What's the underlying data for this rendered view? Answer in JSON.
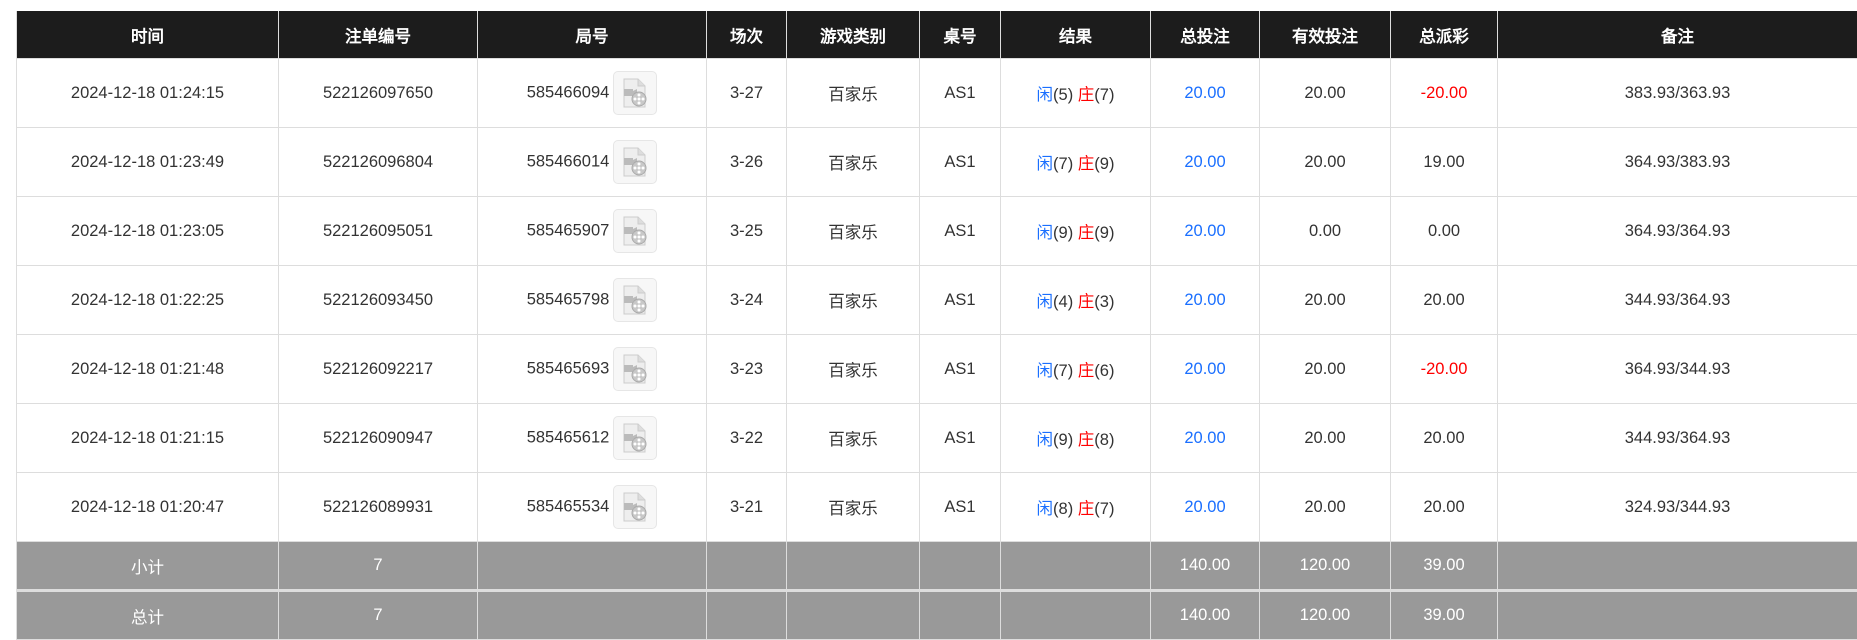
{
  "headers": [
    "时间",
    "注单编号",
    "局号",
    "场次",
    "游戏类别",
    "桌号",
    "结果",
    "总投注",
    "有效投注",
    "总派彩",
    "备注"
  ],
  "rows": [
    {
      "time": "2024-12-18 01:24:15",
      "bet_id": "522126097650",
      "round": "585466094",
      "session": "3-27",
      "game": "百家乐",
      "table": "AS1",
      "player_label": "闲",
      "player": "(5)",
      "banker_label": "庄",
      "banker": "(7)",
      "total_bet": "20.00",
      "valid_bet": "20.00",
      "payout": "-20.00",
      "payout_negative": true,
      "note": "383.93/363.93"
    },
    {
      "time": "2024-12-18 01:23:49",
      "bet_id": "522126096804",
      "round": "585466014",
      "session": "3-26",
      "game": "百家乐",
      "table": "AS1",
      "player_label": "闲",
      "player": "(7)",
      "banker_label": "庄",
      "banker": "(9)",
      "total_bet": "20.00",
      "valid_bet": "20.00",
      "payout": "19.00",
      "payout_negative": false,
      "note": "364.93/383.93"
    },
    {
      "time": "2024-12-18 01:23:05",
      "bet_id": "522126095051",
      "round": "585465907",
      "session": "3-25",
      "game": "百家乐",
      "table": "AS1",
      "player_label": "闲",
      "player": "(9)",
      "banker_label": "庄",
      "banker": "(9)",
      "total_bet": "20.00",
      "valid_bet": "0.00",
      "payout": "0.00",
      "payout_negative": false,
      "note": "364.93/364.93"
    },
    {
      "time": "2024-12-18 01:22:25",
      "bet_id": "522126093450",
      "round": "585465798",
      "session": "3-24",
      "game": "百家乐",
      "table": "AS1",
      "player_label": "闲",
      "player": "(4)",
      "banker_label": "庄",
      "banker": "(3)",
      "total_bet": "20.00",
      "valid_bet": "20.00",
      "payout": "20.00",
      "payout_negative": false,
      "note": "344.93/364.93"
    },
    {
      "time": "2024-12-18 01:21:48",
      "bet_id": "522126092217",
      "round": "585465693",
      "session": "3-23",
      "game": "百家乐",
      "table": "AS1",
      "player_label": "闲",
      "player": "(7)",
      "banker_label": "庄",
      "banker": "(6)",
      "total_bet": "20.00",
      "valid_bet": "20.00",
      "payout": "-20.00",
      "payout_negative": true,
      "note": "364.93/344.93"
    },
    {
      "time": "2024-12-18 01:21:15",
      "bet_id": "522126090947",
      "round": "585465612",
      "session": "3-22",
      "game": "百家乐",
      "table": "AS1",
      "player_label": "闲",
      "player": "(9)",
      "banker_label": "庄",
      "banker": "(8)",
      "total_bet": "20.00",
      "valid_bet": "20.00",
      "payout": "20.00",
      "payout_negative": false,
      "note": "344.93/364.93"
    },
    {
      "time": "2024-12-18 01:20:47",
      "bet_id": "522126089931",
      "round": "585465534",
      "session": "3-21",
      "game": "百家乐",
      "table": "AS1",
      "player_label": "闲",
      "player": "(8)",
      "banker_label": "庄",
      "banker": "(7)",
      "total_bet": "20.00",
      "valid_bet": "20.00",
      "payout": "20.00",
      "payout_negative": false,
      "note": "324.93/344.93"
    }
  ],
  "subtotal": {
    "label": "小计",
    "count": "7",
    "total_bet": "140.00",
    "valid_bet": "120.00",
    "payout": "39.00"
  },
  "total": {
    "label": "总计",
    "count": "7",
    "total_bet": "140.00",
    "valid_bet": "120.00",
    "payout": "39.00"
  },
  "colors": {
    "header_bg": "#1c1c1c",
    "player": "#1a6fff",
    "banker": "#ff0000",
    "negative": "#ff0000",
    "summary_bg": "#999999"
  },
  "icons": {
    "replay": "video-file-icon"
  }
}
